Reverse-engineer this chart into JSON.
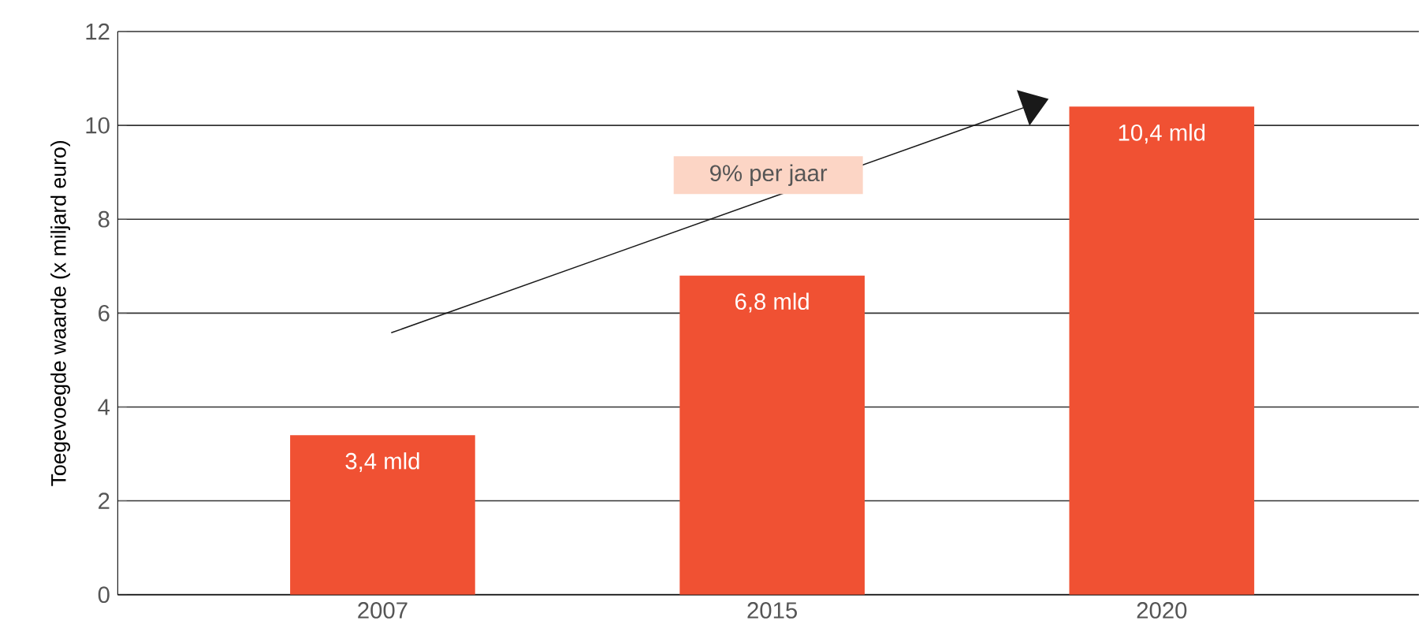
{
  "chart_data": {
    "type": "bar",
    "ylabel": "Toegevoegde waarde (x miljard euro)",
    "categories": [
      "2007",
      "2015",
      "2020"
    ],
    "values": [
      3.4,
      6.8,
      10.4
    ],
    "color": "#f05133",
    "value_labels": [
      "3,4 mld",
      "6,8 mld",
      "10,4 mld"
    ],
    "ylim": [
      0,
      12
    ],
    "yticks": [
      0,
      2,
      4,
      6,
      8,
      10,
      12
    ],
    "grid": "y",
    "annotations": [
      "9% per jaar"
    ]
  }
}
